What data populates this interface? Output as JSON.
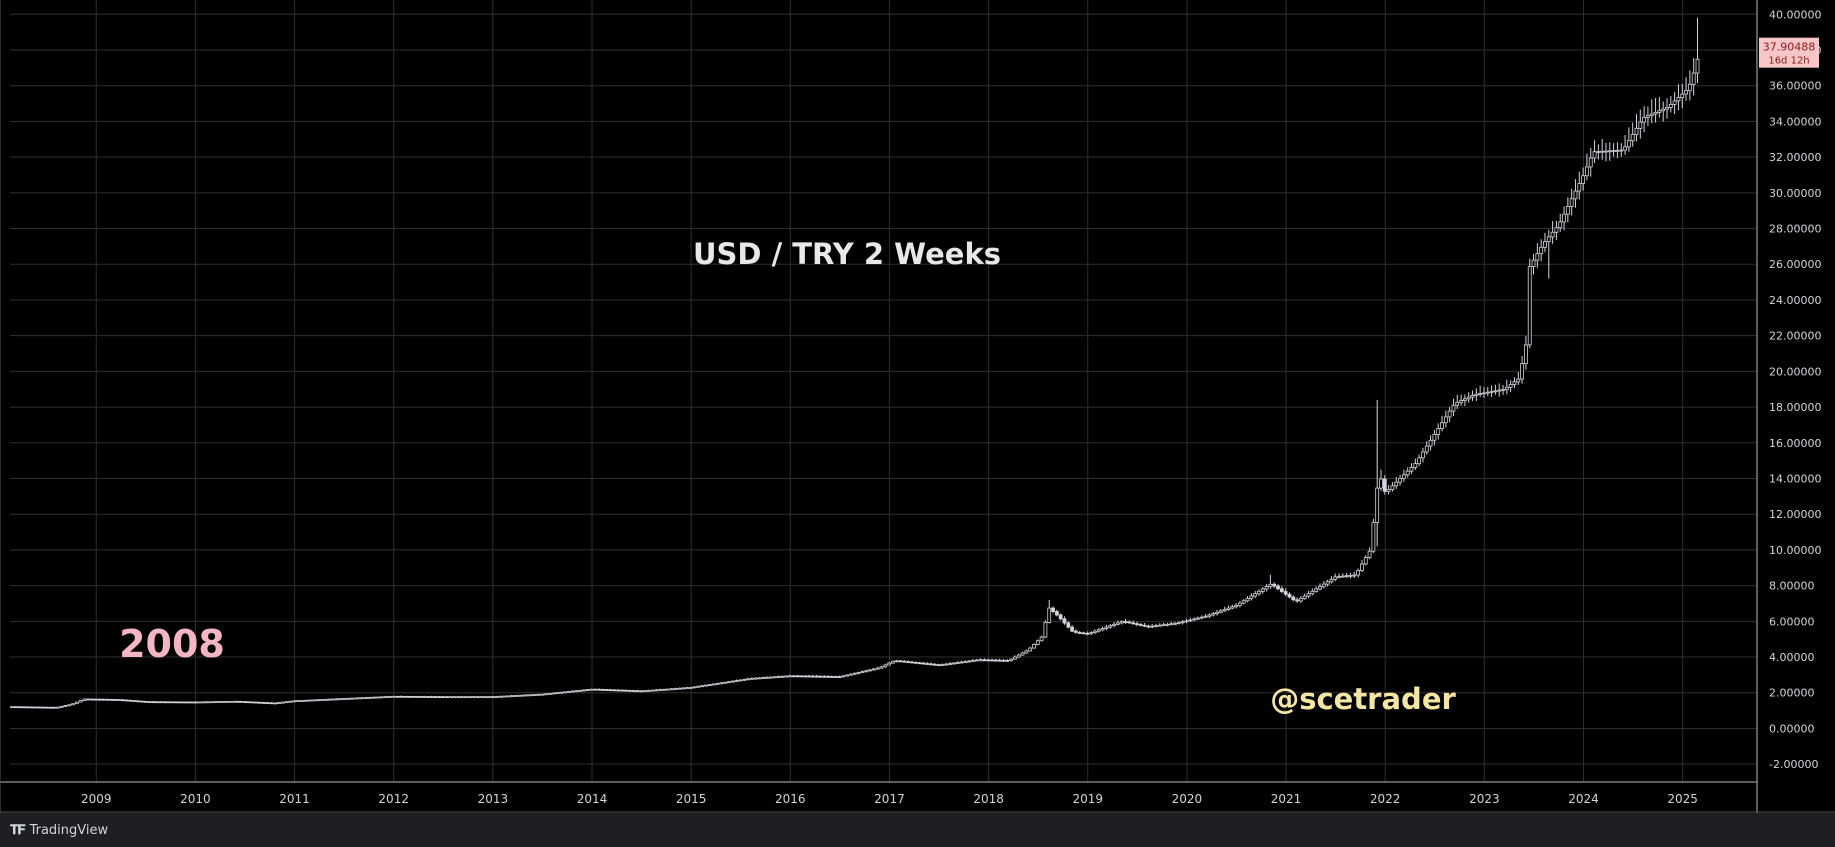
{
  "chart_data": {
    "type": "candlestick",
    "title": "USD / TRY 2 Weeks",
    "annotations": {
      "year_label": "2008",
      "watermark": "@scetrader"
    },
    "y_axis": {
      "ylim": [
        -3.0,
        40.8
      ],
      "ticks": [
        "40.00000",
        "38.00000",
        "36.00000",
        "34.00000",
        "32.00000",
        "30.00000",
        "28.00000",
        "26.00000",
        "24.00000",
        "22.00000",
        "20.00000",
        "18.00000",
        "16.00000",
        "14.00000",
        "12.00000",
        "10.00000",
        "8.00000",
        "6.00000",
        "4.00000",
        "2.00000",
        "0.00000",
        "-2.00000"
      ],
      "tick_values": [
        40,
        38,
        36,
        34,
        32,
        30,
        28,
        26,
        24,
        22,
        20,
        18,
        16,
        14,
        12,
        10,
        8,
        6,
        4,
        2,
        0,
        -2
      ]
    },
    "x_axis": {
      "xlim": [
        2008.13,
        2025.75
      ],
      "ticks": [
        "2009",
        "2010",
        "2011",
        "2012",
        "2013",
        "2014",
        "2015",
        "2016",
        "2017",
        "2018",
        "2019",
        "2020",
        "2021",
        "2022",
        "2023",
        "2024",
        "2025"
      ],
      "tick_values": [
        2009,
        2010,
        2011,
        2012,
        2013,
        2014,
        2015,
        2016,
        2017,
        2018,
        2019,
        2020,
        2021,
        2022,
        2023,
        2024,
        2025
      ]
    },
    "grid": true,
    "last_price": {
      "value": "37.90488",
      "countdown": "16d 12h",
      "y": 37.90488
    },
    "candle_color": "#d1d4dc",
    "label_color": "#f4b6c2",
    "watermark_color": "#f5e6a3",
    "anchors": [
      [
        2008.15,
        1.22
      ],
      [
        2008.6,
        1.18
      ],
      [
        2008.75,
        1.35
      ],
      [
        2008.88,
        1.65
      ],
      [
        2009.2,
        1.62
      ],
      [
        2009.5,
        1.5
      ],
      [
        2010.0,
        1.48
      ],
      [
        2010.4,
        1.52
      ],
      [
        2010.8,
        1.42
      ],
      [
        2011.0,
        1.55
      ],
      [
        2011.6,
        1.7
      ],
      [
        2012.0,
        1.8
      ],
      [
        2012.5,
        1.78
      ],
      [
        2013.0,
        1.78
      ],
      [
        2013.5,
        1.92
      ],
      [
        2014.0,
        2.2
      ],
      [
        2014.5,
        2.1
      ],
      [
        2015.0,
        2.3
      ],
      [
        2015.6,
        2.8
      ],
      [
        2016.0,
        2.95
      ],
      [
        2016.5,
        2.9
      ],
      [
        2016.9,
        3.4
      ],
      [
        2017.05,
        3.8
      ],
      [
        2017.5,
        3.55
      ],
      [
        2017.9,
        3.85
      ],
      [
        2018.2,
        3.8
      ],
      [
        2018.4,
        4.4
      ],
      [
        2018.55,
        5.2
      ],
      [
        2018.6,
        6.8
      ],
      [
        2018.7,
        6.3
      ],
      [
        2018.85,
        5.4
      ],
      [
        2019.0,
        5.3
      ],
      [
        2019.35,
        6.0
      ],
      [
        2019.6,
        5.7
      ],
      [
        2019.9,
        5.9
      ],
      [
        2020.2,
        6.3
      ],
      [
        2020.5,
        6.9
      ],
      [
        2020.85,
        8.1
      ],
      [
        2021.1,
        7.1
      ],
      [
        2021.5,
        8.5
      ],
      [
        2021.7,
        8.6
      ],
      [
        2021.85,
        10.0
      ],
      [
        2021.92,
        13.5
      ],
      [
        2021.96,
        14.0
      ],
      [
        2022.0,
        13.2
      ],
      [
        2022.3,
        14.8
      ],
      [
        2022.5,
        16.5
      ],
      [
        2022.7,
        18.2
      ],
      [
        2022.9,
        18.7
      ],
      [
        2023.2,
        19.0
      ],
      [
        2023.35,
        19.6
      ],
      [
        2023.42,
        21.5
      ],
      [
        2023.45,
        25.8
      ],
      [
        2023.6,
        27.2
      ],
      [
        2023.75,
        28.2
      ],
      [
        2024.0,
        31.0
      ],
      [
        2024.1,
        32.3
      ],
      [
        2024.4,
        32.4
      ],
      [
        2024.6,
        34.2
      ],
      [
        2024.85,
        34.8
      ],
      [
        2025.05,
        35.8
      ],
      [
        2025.1,
        36.4
      ],
      [
        2025.13,
        37.2
      ],
      [
        2025.18,
        37.9
      ]
    ],
    "spikes": [
      {
        "x": 2018.6,
        "high": 7.2
      },
      {
        "x": 2020.85,
        "high": 8.6
      },
      {
        "x": 2021.92,
        "high": 18.4,
        "low": 10.2
      },
      {
        "x": 2021.96,
        "high": 14.5
      },
      {
        "x": 2023.45,
        "high": 26.2
      },
      {
        "x": 2023.64,
        "low": 25.2
      },
      {
        "x": 2025.15,
        "high": 39.8
      }
    ]
  }
}
